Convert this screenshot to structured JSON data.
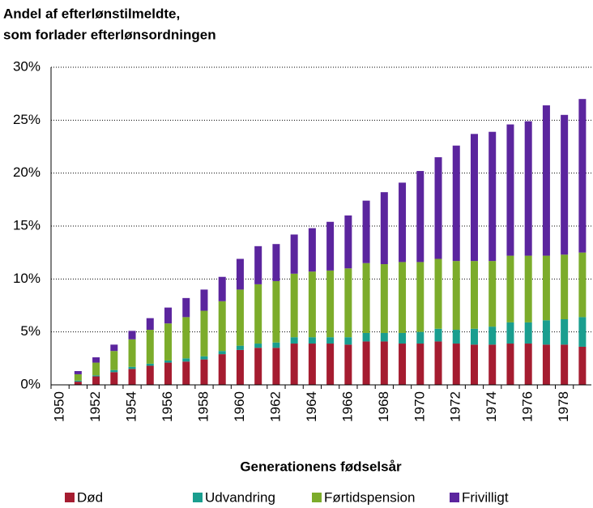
{
  "chart_data": {
    "type": "stacked_bar",
    "title_lines": [
      "Andel af efterlønstilmeldte,",
      "som forlader efterlønsordningen"
    ],
    "x_label": "Generationens fødselsår",
    "categories": [
      "1950",
      null,
      "1952",
      null,
      "1954",
      null,
      "1956",
      null,
      "1958",
      null,
      "1960",
      null,
      "1962",
      null,
      "1964",
      null,
      "1966",
      null,
      "1968",
      null,
      "1970",
      null,
      "1972",
      null,
      "1974",
      null,
      "1976",
      null,
      "1978",
      null
    ],
    "series": [
      {
        "name": "Død",
        "color": "#a51c30",
        "values": [
          0,
          0.3,
          0.8,
          1.2,
          1.5,
          1.8,
          2.1,
          2.2,
          2.4,
          2.9,
          3.3,
          3.5,
          3.5,
          3.9,
          3.9,
          3.9,
          3.8,
          4.1,
          4.1,
          3.9,
          3.9,
          4.1,
          3.9,
          3.8,
          3.8,
          3.9,
          3.9,
          3.8,
          3.8,
          3.6
        ]
      },
      {
        "name": "Udvandring",
        "color": "#1a9e8f",
        "values": [
          0,
          0.1,
          0.1,
          0.2,
          0.2,
          0.2,
          0.2,
          0.3,
          0.3,
          0.3,
          0.4,
          0.4,
          0.5,
          0.6,
          0.6,
          0.6,
          0.7,
          0.8,
          0.8,
          1.0,
          1.1,
          1.2,
          1.3,
          1.5,
          1.7,
          2.0,
          2.0,
          2.3,
          2.4,
          2.8
        ]
      },
      {
        "name": "Førtidspension",
        "color": "#7cac2b",
        "values": [
          0,
          0.6,
          1.2,
          1.8,
          2.6,
          3.2,
          3.5,
          3.9,
          4.3,
          4.7,
          5.3,
          5.6,
          5.8,
          6.0,
          6.2,
          6.3,
          6.5,
          6.6,
          6.5,
          6.7,
          6.6,
          6.6,
          6.5,
          6.4,
          6.2,
          6.3,
          6.3,
          6.1,
          6.1,
          6.1
        ]
      },
      {
        "name": "Frivilligt",
        "color": "#5b259e",
        "values": [
          0,
          0.3,
          0.5,
          0.6,
          0.8,
          1.1,
          1.5,
          1.8,
          2.0,
          2.3,
          2.9,
          3.6,
          3.5,
          3.7,
          4.1,
          4.6,
          5.0,
          5.9,
          6.8,
          7.5,
          8.6,
          9.6,
          10.9,
          12.0,
          12.2,
          12.4,
          12.7,
          14.2,
          13.2,
          14.5
        ]
      }
    ],
    "ylim": [
      0,
      30
    ],
    "yticks": [
      {
        "value": 0,
        "label": "0%"
      },
      {
        "value": 5,
        "label": "5%"
      },
      {
        "value": 10,
        "label": "10%"
      },
      {
        "value": 15,
        "label": "15%"
      },
      {
        "value": 20,
        "label": "20%"
      },
      {
        "value": 25,
        "label": "25%"
      },
      {
        "value": 30,
        "label": "30%"
      }
    ],
    "grid": true,
    "legend": "bottom"
  }
}
